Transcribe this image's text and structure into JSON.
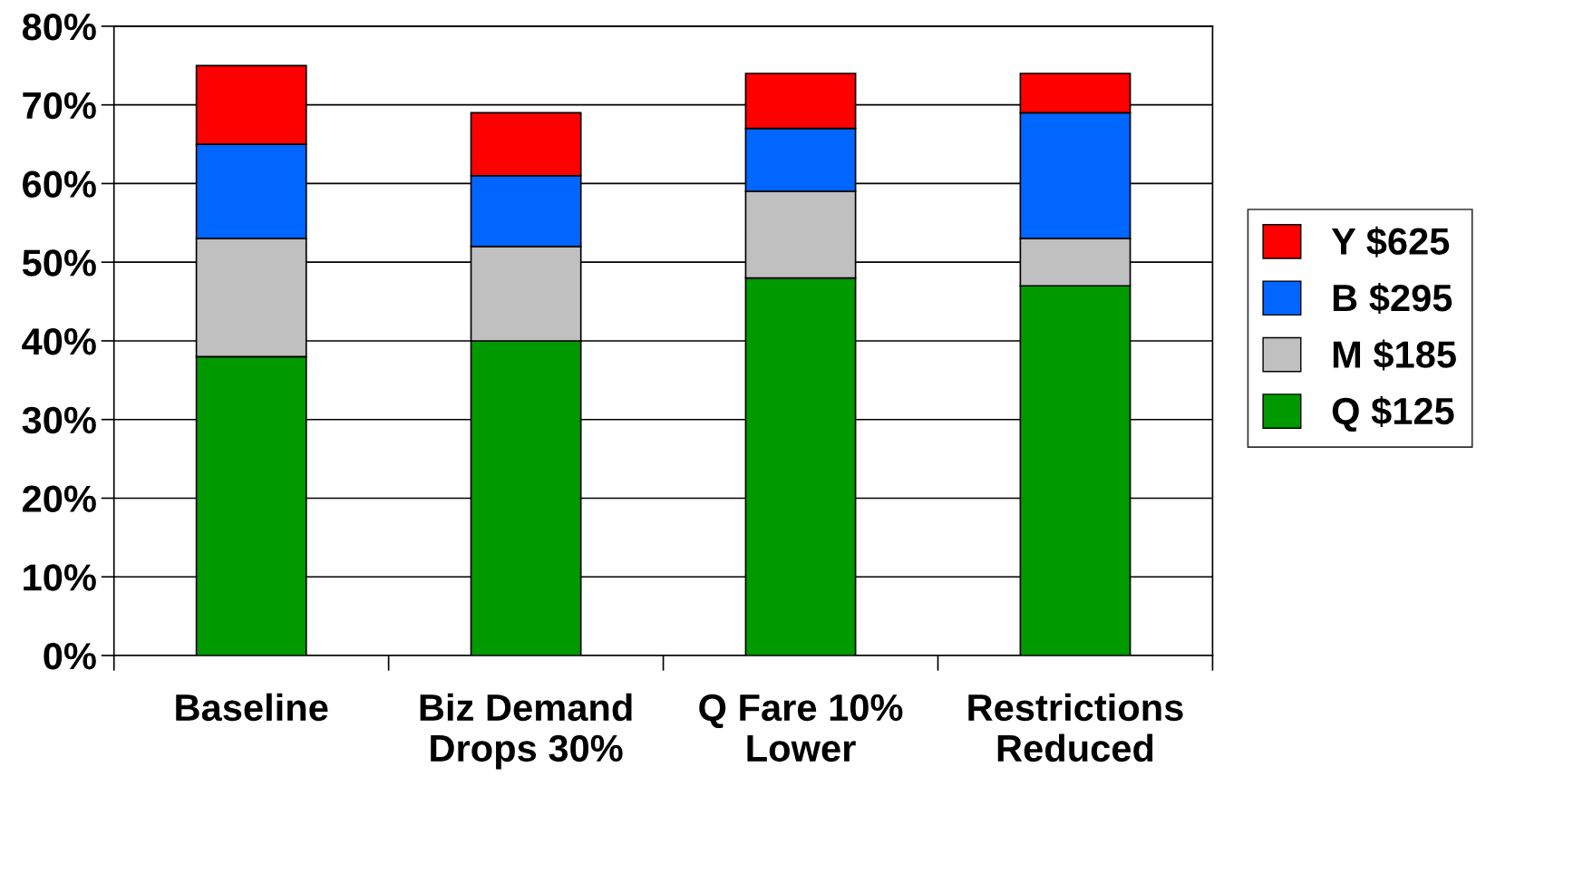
{
  "chart_data": {
    "type": "bar",
    "stacked": true,
    "categories": [
      "Baseline",
      "Biz Demand\nDrops 30%",
      "Q Fare 10%\nLower",
      "Restrictions\nReduced"
    ],
    "series": [
      {
        "name": "Q $125",
        "color": "#009900",
        "values": [
          38,
          40,
          48,
          47
        ]
      },
      {
        "name": "M $185",
        "color": "#c0c0c0",
        "values": [
          15,
          12,
          11,
          6
        ]
      },
      {
        "name": "B $295",
        "color": "#0066ff",
        "values": [
          12,
          9,
          8,
          16
        ]
      },
      {
        "name": "Y $625",
        "color": "#ff0000",
        "values": [
          10,
          8,
          7,
          5
        ]
      }
    ],
    "ylim": [
      0,
      80
    ],
    "yticks": [
      {
        "value": 0,
        "label": "0%"
      },
      {
        "value": 10,
        "label": "10%"
      },
      {
        "value": 20,
        "label": "20%"
      },
      {
        "value": 30,
        "label": "30%"
      },
      {
        "value": 40,
        "label": "40%"
      },
      {
        "value": 50,
        "label": "50%"
      },
      {
        "value": 60,
        "label": "60%"
      },
      {
        "value": 70,
        "label": "70%"
      },
      {
        "value": 80,
        "label": "80%"
      }
    ],
    "grid": "y",
    "legend": "right"
  }
}
